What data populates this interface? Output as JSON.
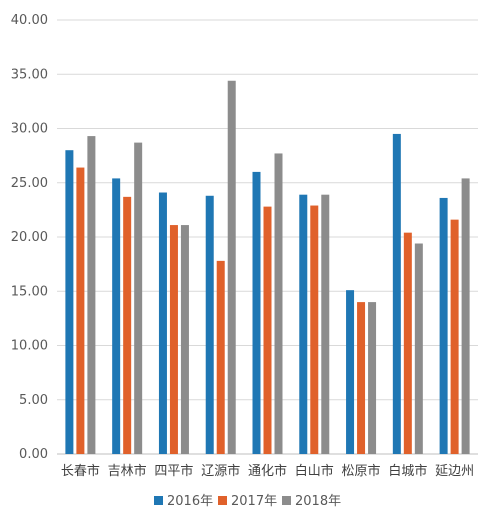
{
  "chart_data": {
    "type": "bar",
    "title": "",
    "xlabel": "",
    "ylabel": "",
    "ylim": [
      0,
      40
    ],
    "yticks": [
      0,
      5,
      10,
      15,
      20,
      25,
      30,
      35,
      40
    ],
    "ytick_labels": [
      "0.00",
      "5.00",
      "10.00",
      "15.00",
      "20.00",
      "25.00",
      "30.00",
      "35.00",
      "40.00"
    ],
    "grid": true,
    "legend": "bottom",
    "categories": [
      "长春市",
      "吉林市",
      "四平市",
      "辽源市",
      "通化市",
      "白山市",
      "松原市",
      "白城市",
      "延边州"
    ],
    "series": [
      {
        "name": "2016年",
        "color": "#1f77b4",
        "values": [
          28.0,
          25.4,
          24.1,
          23.8,
          26.0,
          23.9,
          15.1,
          29.5,
          23.6
        ]
      },
      {
        "name": "2017年",
        "color": "#e0612b",
        "values": [
          26.4,
          23.7,
          21.1,
          17.8,
          22.8,
          22.9,
          14.0,
          20.4,
          21.6
        ]
      },
      {
        "name": "2018年",
        "color": "#8c8c8c",
        "values": [
          29.3,
          28.7,
          21.1,
          34.4,
          27.7,
          23.9,
          14.0,
          19.4,
          25.4
        ]
      }
    ]
  }
}
